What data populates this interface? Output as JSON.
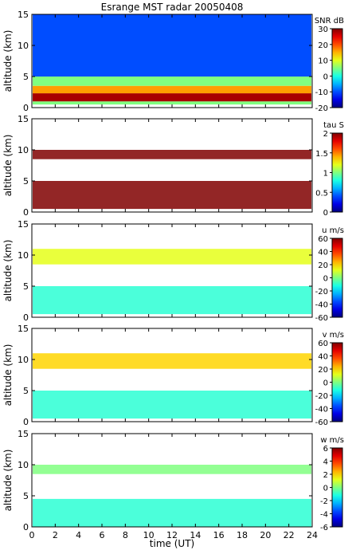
{
  "chart_data": [
    {
      "type": "heatmap",
      "title": "Esrange MST radar 20050408",
      "xlabel": "",
      "ylabel": "altitude (km)",
      "xlim": [
        0,
        24
      ],
      "ylim": [
        0,
        15
      ],
      "xticks": [
        "0",
        "2",
        "4",
        "6",
        "8",
        "10",
        "12",
        "14",
        "16",
        "18",
        "20",
        "22",
        "24"
      ],
      "yticks": [
        "0",
        "5",
        "10",
        "15"
      ],
      "colorbar": {
        "label": "SNR dB",
        "min": -20,
        "max": 30,
        "ticks": [
          "-20",
          "-10",
          "0",
          "10",
          "20",
          "30"
        ],
        "colormap": "jet"
      },
      "grid": false,
      "layers": [
        {
          "alt_range": [
            0.5,
            1.0
          ],
          "value": 5
        },
        {
          "alt_range": [
            1.0,
            2.3
          ],
          "value": 28
        },
        {
          "alt_range": [
            2.3,
            3.5
          ],
          "value": 16
        },
        {
          "alt_range": [
            3.5,
            5.0
          ],
          "value": 5
        },
        {
          "alt_range": [
            5.0,
            15.0
          ],
          "value": -10
        }
      ]
    },
    {
      "type": "heatmap",
      "xlabel": "",
      "ylabel": "altitude (km)",
      "xlim": [
        0,
        24
      ],
      "ylim": [
        0,
        15
      ],
      "xticks": [
        "0",
        "2",
        "4",
        "6",
        "8",
        "10",
        "12",
        "14",
        "16",
        "18",
        "20",
        "22",
        "24"
      ],
      "yticks": [
        "0",
        "5",
        "10",
        "15"
      ],
      "colorbar": {
        "label": "tau S",
        "min": 0,
        "max": 2,
        "ticks": [
          "0",
          "0.5",
          "1",
          "1.5",
          "2"
        ],
        "colormap": "jet"
      },
      "grid": false,
      "layers": [
        {
          "alt_range": [
            0.5,
            5.0
          ],
          "value": 2.0
        },
        {
          "alt_range": [
            8.5,
            10.0
          ],
          "value": 2.0
        }
      ]
    },
    {
      "type": "heatmap",
      "xlabel": "",
      "ylabel": "altitude (km)",
      "xlim": [
        0,
        24
      ],
      "ylim": [
        0,
        15
      ],
      "xticks": [
        "0",
        "2",
        "4",
        "6",
        "8",
        "10",
        "12",
        "14",
        "16",
        "18",
        "20",
        "22",
        "24"
      ],
      "yticks": [
        "0",
        "5",
        "10",
        "15"
      ],
      "colorbar": {
        "label": "u m/s",
        "min": -60,
        "max": 60,
        "ticks": [
          "-60",
          "-40",
          "-20",
          "0",
          "20",
          "40",
          "60"
        ],
        "colormap": "jet"
      },
      "grid": false,
      "layers": [
        {
          "alt_range": [
            0.5,
            5.0
          ],
          "value": -10
        },
        {
          "alt_range": [
            8.5,
            11.0
          ],
          "value": 12
        }
      ]
    },
    {
      "type": "heatmap",
      "xlabel": "",
      "ylabel": "altitude (km)",
      "xlim": [
        0,
        24
      ],
      "ylim": [
        0,
        15
      ],
      "xticks": [
        "0",
        "2",
        "4",
        "6",
        "8",
        "10",
        "12",
        "14",
        "16",
        "18",
        "20",
        "22",
        "24"
      ],
      "yticks": [
        "0",
        "5",
        "10",
        "15"
      ],
      "colorbar": {
        "label": "v m/s",
        "min": -60,
        "max": 60,
        "ticks": [
          "-60",
          "-40",
          "-20",
          "0",
          "20",
          "40",
          "60"
        ],
        "colormap": "jet"
      },
      "grid": false,
      "layers": [
        {
          "alt_range": [
            0.5,
            5.0
          ],
          "value": -10
        },
        {
          "alt_range": [
            8.5,
            11.0
          ],
          "value": 20
        }
      ]
    },
    {
      "type": "heatmap",
      "xlabel": "time (UT)",
      "ylabel": "altitude (km)",
      "xlim": [
        0,
        24
      ],
      "ylim": [
        0,
        15
      ],
      "xticks": [
        "0",
        "2",
        "4",
        "6",
        "8",
        "10",
        "12",
        "14",
        "16",
        "18",
        "20",
        "22",
        "24"
      ],
      "yticks": [
        "0",
        "5",
        "10",
        "15"
      ],
      "colorbar": {
        "label": "w m/s",
        "min": -6,
        "max": 6,
        "ticks": [
          "-6",
          "-4",
          "-2",
          "0",
          "2",
          "4",
          "6"
        ],
        "colormap": "jet"
      },
      "grid": false,
      "layers": [
        {
          "alt_range": [
            0.0,
            4.5
          ],
          "value": -1
        },
        {
          "alt_range": [
            8.5,
            10.0
          ],
          "value": 0
        }
      ]
    }
  ]
}
